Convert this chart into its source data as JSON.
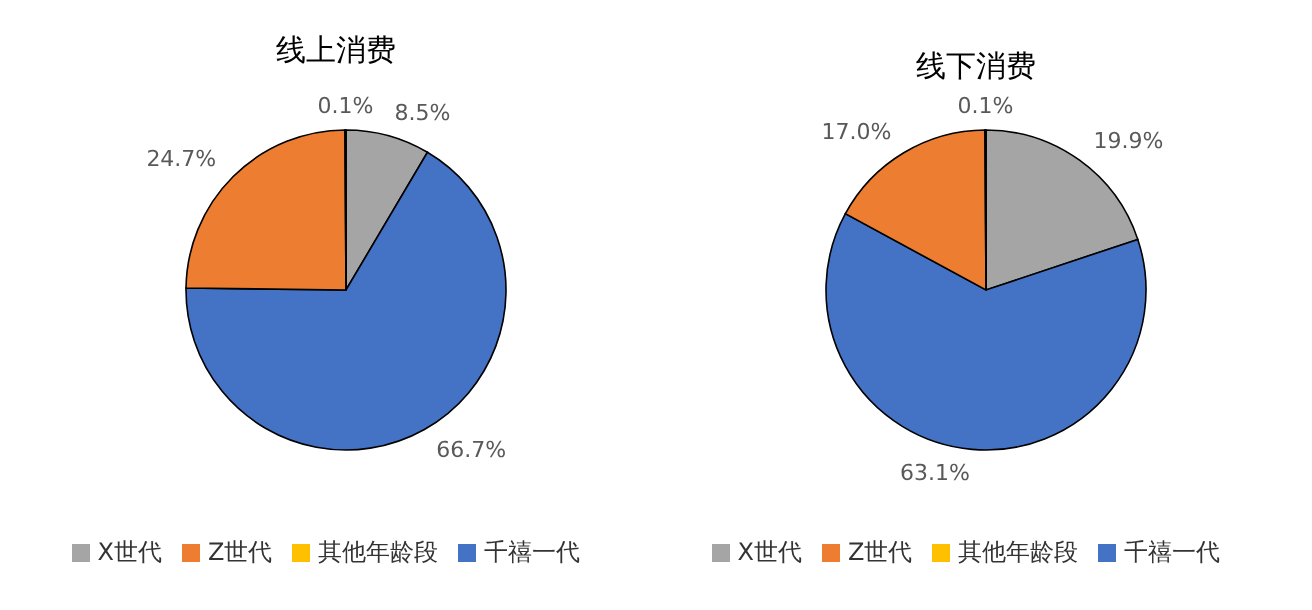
{
  "chart_data": [
    {
      "type": "pie",
      "title": "线上消费",
      "categories": [
        "X世代",
        "千禧一代",
        "Z世代",
        "其他年龄段"
      ],
      "values": [
        8.5,
        66.7,
        24.7,
        0.1
      ],
      "value_labels": [
        "8.5%",
        "66.7%",
        "24.7%",
        "0.1%"
      ],
      "colors": [
        "#a5a5a5",
        "#4472c4",
        "#ed7d31",
        "#ffc000"
      ],
      "legend": "bottom"
    },
    {
      "type": "pie",
      "title": "线下消费",
      "categories": [
        "X世代",
        "千禧一代",
        "Z世代",
        "其他年龄段"
      ],
      "values": [
        19.9,
        63.1,
        17.0,
        0.1
      ],
      "value_labels": [
        "19.9%",
        "63.1%",
        "17.0%",
        "0.1%"
      ],
      "colors": [
        "#a5a5a5",
        "#4472c4",
        "#ed7d31",
        "#ffc000"
      ],
      "legend": "bottom"
    }
  ]
}
